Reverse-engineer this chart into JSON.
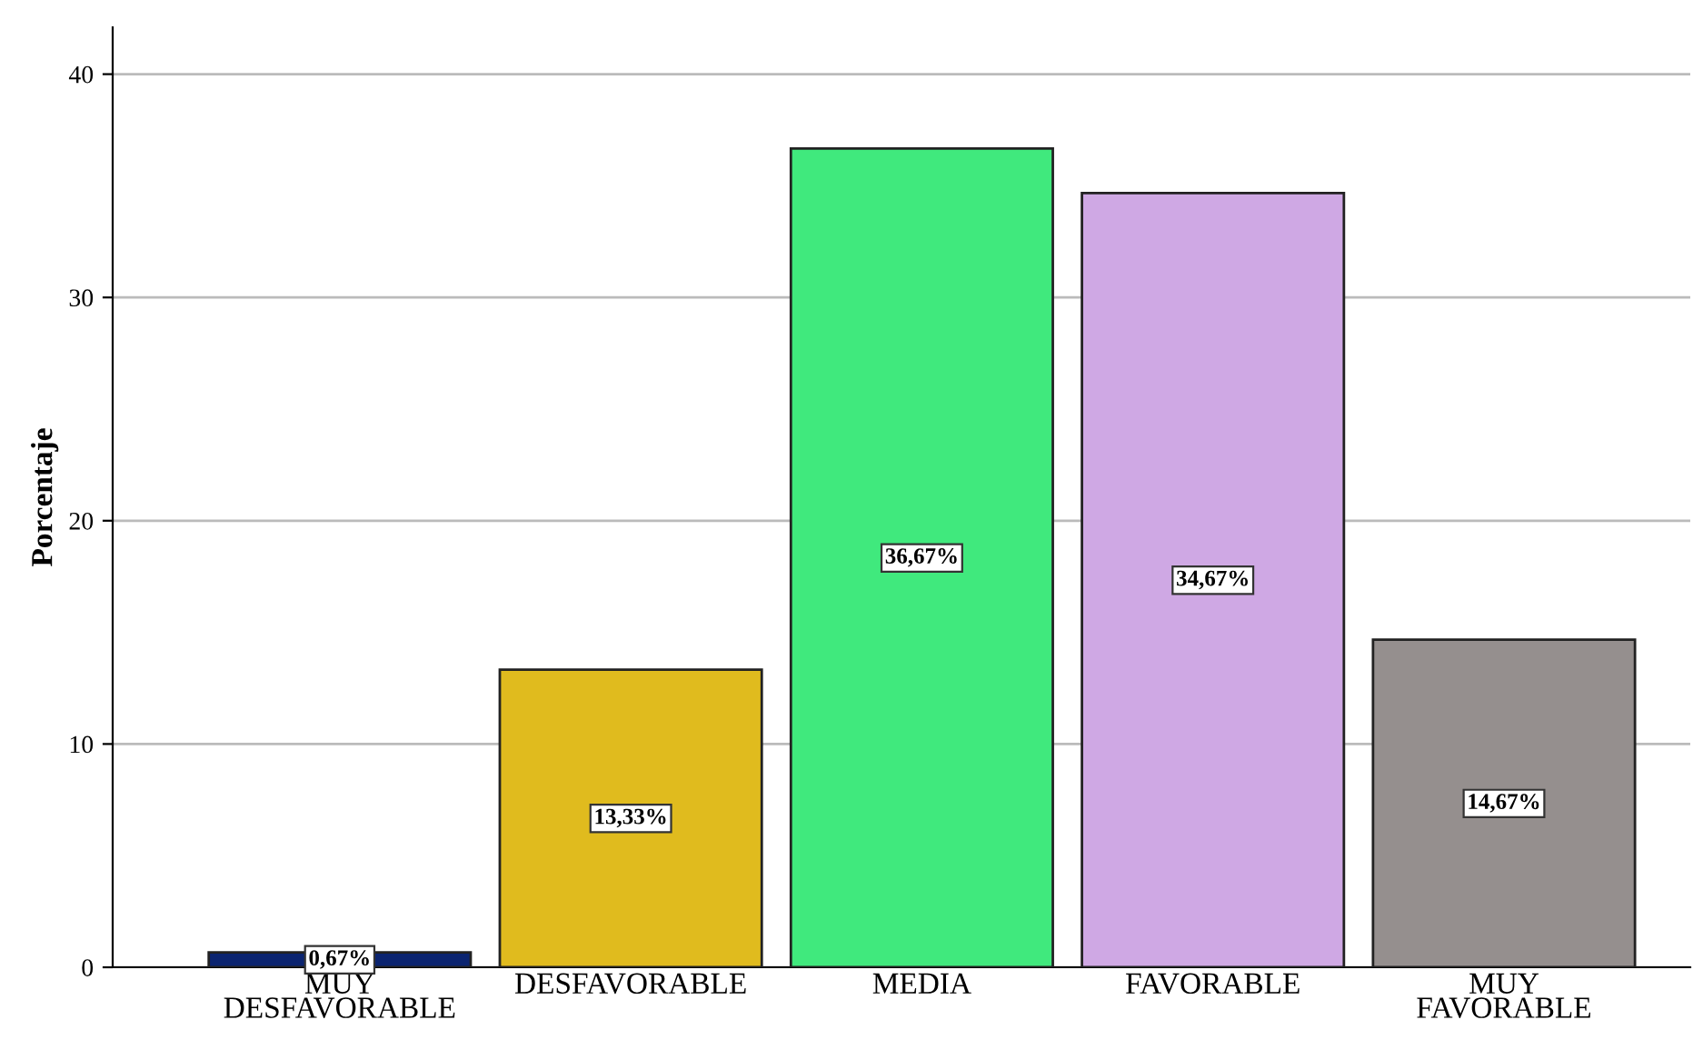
{
  "chart_data": {
    "type": "bar",
    "ylabel": "Porcentaje",
    "categories": [
      "MUY\nDESFAVORABLE",
      "DESFAVORABLE",
      "MEDIA",
      "FAVORABLE",
      "MUY\nFAVORABLE"
    ],
    "values": [
      0.67,
      13.33,
      36.67,
      34.67,
      14.67
    ],
    "colors": [
      "#0b2470",
      "#e0bb1e",
      "#40e97d",
      "#cfa8e4",
      "#958f8e"
    ],
    "value_labels": [
      "0,67%",
      "13,33%",
      "36,67%",
      "34,67%",
      "14,67%"
    ],
    "ylim": [
      0,
      42.1
    ],
    "yticks": [
      0,
      10,
      20,
      30,
      40
    ],
    "grid": "y"
  }
}
